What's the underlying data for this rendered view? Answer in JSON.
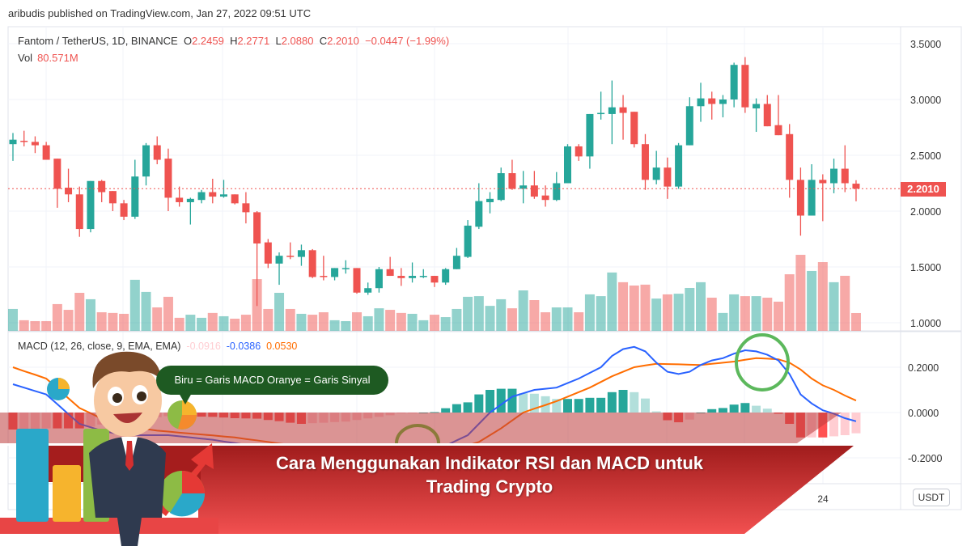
{
  "header": {
    "published": "aribudis published on TradingView.com, Jan 27, 2022 09:51 UTC"
  },
  "legend": {
    "symbol": "Fantom / TetherUS, 1D, BINANCE",
    "o_label": "O",
    "o": "2.2459",
    "h_label": "H",
    "h": "2.2771",
    "l_label": "L",
    "l": "2.0880",
    "c_label": "C",
    "c": "2.2010",
    "change": "−0.0447 (−1.99%)",
    "vol_label": "Vol",
    "vol": "80.571M"
  },
  "price_axis": {
    "currency": "USDT",
    "ticks": [
      "3.5000",
      "3.0000",
      "2.5000",
      "2.0000",
      "1.5000",
      "1.0000"
    ],
    "last_price": "2.2010"
  },
  "macd": {
    "label": "MACD (12, 26, close, 9, EMA, EMA)",
    "hist": "-0.0916",
    "macd": "-0.0386",
    "signal": "0.0530",
    "ticks": [
      "0.2000",
      "0.0000",
      "-0.2000"
    ]
  },
  "time_axis": {
    "ticks": [
      "24"
    ]
  },
  "overlay": {
    "bubble": "Biru = Garis MACD Oranye = Garis Sinyal",
    "title_line1": "Cara Menggunakan Indikator RSI dan MACD untuk",
    "title_line2": "Trading Crypto"
  },
  "colors": {
    "up": "#26a69a",
    "down": "#ef5350",
    "macd_line": "#2962ff",
    "signal_line": "#ff6d00",
    "hist_up_strong": "#26a69a",
    "hist_up_weak": "#b2dfdb",
    "hist_down_strong": "#ff5252",
    "hist_down_weak": "#ffcdd2",
    "banner": "#c62828",
    "bubble": "#1e5a22",
    "highlight_circle": "#5cb85c"
  },
  "chart_data": {
    "type": "candlestick",
    "title": "Fantom / TetherUS, 1D, BINANCE",
    "price_ticks": [
      1.0,
      1.5,
      2.0,
      2.5,
      3.0,
      3.5
    ],
    "price_range": [
      0.93,
      3.6
    ],
    "macd_ticks": [
      -0.2,
      0.0,
      0.2
    ],
    "macd_range": [
      -0.314,
      0.357
    ],
    "grid": true,
    "ohlc": [
      [
        2.6,
        2.7,
        2.45,
        2.64
      ],
      [
        2.63,
        2.72,
        2.58,
        2.62
      ],
      [
        2.62,
        2.67,
        2.52,
        2.59
      ],
      [
        2.59,
        2.62,
        2.46,
        2.46
      ],
      [
        2.47,
        2.47,
        2.03,
        2.2
      ],
      [
        2.21,
        2.38,
        2.08,
        2.15
      ],
      [
        2.15,
        2.22,
        1.77,
        1.84
      ],
      [
        1.84,
        2.27,
        1.81,
        2.27
      ],
      [
        2.27,
        2.28,
        2.08,
        2.17
      ],
      [
        2.18,
        2.18,
        2.0,
        2.07
      ],
      [
        2.07,
        2.1,
        1.92,
        1.95
      ],
      [
        1.95,
        2.46,
        1.93,
        2.31
      ],
      [
        2.31,
        2.61,
        2.23,
        2.59
      ],
      [
        2.59,
        2.67,
        2.42,
        2.46
      ],
      [
        2.47,
        2.56,
        2.0,
        2.12
      ],
      [
        2.12,
        2.22,
        2.04,
        2.08
      ],
      [
        2.08,
        2.12,
        1.88,
        2.11
      ],
      [
        2.1,
        2.19,
        2.07,
        2.17
      ],
      [
        2.17,
        2.29,
        2.07,
        2.13
      ],
      [
        2.13,
        2.28,
        2.12,
        2.15
      ],
      [
        2.15,
        2.15,
        2.06,
        2.07
      ],
      [
        2.07,
        2.17,
        1.89,
        1.99
      ],
      [
        1.99,
        2.0,
        1.15,
        1.71
      ],
      [
        1.72,
        1.75,
        1.49,
        1.53
      ],
      [
        1.53,
        1.63,
        1.34,
        1.6
      ],
      [
        1.6,
        1.72,
        1.57,
        1.59
      ],
      [
        1.59,
        1.7,
        1.51,
        1.65
      ],
      [
        1.65,
        1.66,
        1.4,
        1.41
      ],
      [
        1.42,
        1.6,
        1.38,
        1.41
      ],
      [
        1.41,
        1.49,
        1.38,
        1.49
      ],
      [
        1.48,
        1.56,
        1.44,
        1.49
      ],
      [
        1.49,
        1.49,
        1.26,
        1.27
      ],
      [
        1.27,
        1.36,
        1.25,
        1.31
      ],
      [
        1.31,
        1.5,
        1.27,
        1.48
      ],
      [
        1.48,
        1.59,
        1.42,
        1.42
      ],
      [
        1.42,
        1.49,
        1.33,
        1.4
      ],
      [
        1.4,
        1.54,
        1.36,
        1.42
      ],
      [
        1.41,
        1.48,
        1.4,
        1.42
      ],
      [
        1.42,
        1.42,
        1.32,
        1.36
      ],
      [
        1.36,
        1.49,
        1.34,
        1.48
      ],
      [
        1.48,
        1.67,
        1.48,
        1.6
      ],
      [
        1.59,
        1.92,
        1.58,
        1.87
      ],
      [
        1.86,
        2.25,
        1.84,
        2.09
      ],
      [
        2.08,
        2.17,
        1.98,
        2.11
      ],
      [
        2.1,
        2.39,
        2.09,
        2.34
      ],
      [
        2.34,
        2.46,
        2.19,
        2.2
      ],
      [
        2.2,
        2.36,
        2.07,
        2.23
      ],
      [
        2.23,
        2.36,
        2.11,
        2.13
      ],
      [
        2.14,
        2.23,
        2.04,
        2.1
      ],
      [
        2.1,
        2.35,
        2.09,
        2.25
      ],
      [
        2.25,
        2.6,
        2.25,
        2.58
      ],
      [
        2.58,
        2.6,
        2.45,
        2.49
      ],
      [
        2.49,
        2.87,
        2.38,
        2.87
      ],
      [
        2.87,
        3.07,
        2.82,
        2.88
      ],
      [
        2.87,
        3.17,
        2.6,
        2.93
      ],
      [
        2.93,
        3.04,
        2.64,
        2.88
      ],
      [
        2.89,
        2.89,
        2.57,
        2.6
      ],
      [
        2.6,
        2.69,
        2.19,
        2.28
      ],
      [
        2.28,
        2.54,
        2.24,
        2.39
      ],
      [
        2.39,
        2.48,
        2.11,
        2.22
      ],
      [
        2.22,
        2.61,
        2.2,
        2.59
      ],
      [
        2.59,
        3.02,
        2.59,
        2.94
      ],
      [
        2.94,
        3.15,
        2.8,
        3.01
      ],
      [
        3.01,
        3.07,
        2.82,
        2.96
      ],
      [
        2.96,
        3.04,
        2.84,
        3.0
      ],
      [
        3.0,
        3.33,
        2.93,
        3.31
      ],
      [
        3.31,
        3.38,
        2.88,
        2.93
      ],
      [
        2.92,
        3.01,
        2.71,
        2.96
      ],
      [
        2.96,
        3.04,
        2.76,
        2.76
      ],
      [
        2.77,
        3.04,
        2.68,
        2.68
      ],
      [
        2.69,
        2.78,
        2.12,
        2.28
      ],
      [
        2.28,
        2.39,
        1.78,
        1.96
      ],
      [
        1.96,
        2.42,
        1.96,
        2.28
      ],
      [
        2.28,
        2.33,
        1.91,
        2.25
      ],
      [
        2.25,
        2.47,
        2.16,
        2.38
      ],
      [
        2.38,
        2.59,
        2.17,
        2.25
      ],
      [
        2.2459,
        2.2771,
        2.088,
        2.201
      ]
    ],
    "volume_millions": [
      99,
      48,
      44,
      44,
      121,
      95,
      172,
      143,
      84,
      81,
      77,
      231,
      176,
      106,
      154,
      59,
      73,
      59,
      81,
      66,
      55,
      73,
      234,
      99,
      172,
      99,
      77,
      73,
      84,
      48,
      44,
      84,
      66,
      102,
      95,
      81,
      77,
      48,
      73,
      62,
      99,
      154,
      157,
      113,
      143,
      102,
      183,
      139,
      84,
      106,
      106,
      84,
      165,
      157,
      264,
      220,
      205,
      209,
      146,
      165,
      168,
      194,
      220,
      150,
      81,
      165,
      157,
      157,
      150,
      132,
      256,
      344,
      271,
      311,
      220,
      249,
      80.571
    ],
    "macd_line": [
      0.125,
      0.11,
      0.095,
      0.08,
      0.037,
      -0.007,
      -0.05,
      -0.065,
      -0.08,
      -0.09,
      -0.1,
      -0.1,
      -0.1,
      -0.1,
      -0.1,
      -0.105,
      -0.11,
      -0.115,
      -0.12,
      -0.128,
      -0.135,
      -0.143,
      -0.15,
      -0.163,
      -0.175,
      -0.188,
      -0.2,
      -0.205,
      -0.21,
      -0.215,
      -0.22,
      -0.215,
      -0.21,
      -0.205,
      -0.2,
      -0.193,
      -0.185,
      -0.178,
      -0.17,
      -0.147,
      -0.123,
      -0.1,
      -0.05,
      0,
      0.035,
      0.07,
      0.085,
      0.1,
      0.105,
      0.11,
      0.13,
      0.15,
      0.175,
      0.2,
      0.25,
      0.28,
      0.29,
      0.27,
      0.22,
      0.18,
      0.17,
      0.18,
      0.21,
      0.23,
      0.24,
      0.26,
      0.275,
      0.27,
      0.255,
      0.23,
      0.17,
      0.08,
      0.04,
      0.01,
      -0.005,
      -0.025,
      -0.0386
    ],
    "signal_line": [
      0.2,
      0.183,
      0.167,
      0.15,
      0.107,
      0.063,
      0.02,
      -0.003,
      -0.027,
      -0.05,
      -0.058,
      -0.065,
      -0.073,
      -0.08,
      -0.084,
      -0.089,
      -0.093,
      -0.097,
      -0.101,
      -0.106,
      -0.11,
      -0.117,
      -0.123,
      -0.13,
      -0.137,
      -0.143,
      -0.15,
      -0.158,
      -0.165,
      -0.173,
      -0.18,
      -0.182,
      -0.184,
      -0.186,
      -0.188,
      -0.19,
      -0.184,
      -0.178,
      -0.172,
      -0.166,
      -0.16,
      -0.145,
      -0.13,
      -0.1,
      -0.07,
      -0.035,
      0,
      0.017,
      0.033,
      0.05,
      0.07,
      0.09,
      0.11,
      0.135,
      0.16,
      0.18,
      0.2,
      0.208,
      0.215,
      0.214,
      0.213,
      0.211,
      0.21,
      0.215,
      0.22,
      0.225,
      0.233,
      0.24,
      0.238,
      0.235,
      0.22,
      0.19,
      0.15,
      0.12,
      0.1,
      0.075,
      0.053
    ],
    "last_price": 2.201
  }
}
